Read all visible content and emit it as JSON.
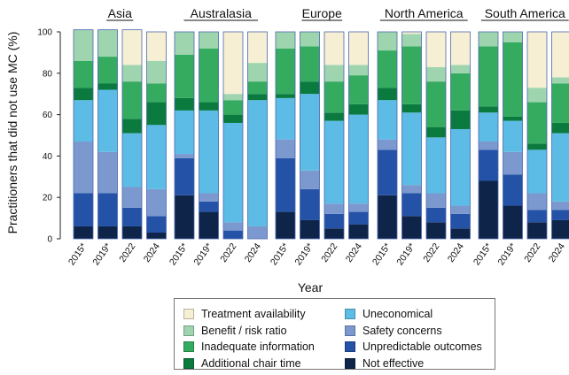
{
  "chart_data": {
    "type": "bar",
    "stacked": true,
    "ylabel": "Practitioners that did not use MC (%)",
    "xlabel": "Year",
    "ylim": [
      0,
      100
    ],
    "yticks": [
      0,
      20,
      40,
      60,
      80,
      100
    ],
    "grid": false,
    "legend_position": "bottom",
    "categories": [
      "2015*",
      "2019*",
      "2022",
      "2024"
    ],
    "stack_order": [
      "Not effective",
      "Unpredictable outcomes",
      "Safety concerns",
      "Uneconomical",
      "Additional chair time",
      "Inadequate information",
      "Benefit / risk ratio",
      "Treatment availability"
    ],
    "colors": {
      "Treatment availability": "#f6efd4",
      "Benefit / risk ratio": "#9fd5ae",
      "Inadequate information": "#35ab60",
      "Additional chair time": "#0b7a3e",
      "Uneconomical": "#5cbce6",
      "Safety concerns": "#7c99cf",
      "Unpredictable outcomes": "#2452a6",
      "Not effective": "#0e2448"
    },
    "panels": [
      {
        "region": "Asia",
        "bars": [
          {
            "Not effective": 6,
            "Unpredictable outcomes": 16,
            "Safety concerns": 25,
            "Uneconomical": 20,
            "Additional chair time": 6,
            "Inadequate information": 13,
            "Benefit / risk ratio": 15,
            "Treatment availability": 0
          },
          {
            "Not effective": 6,
            "Unpredictable outcomes": 16,
            "Safety concerns": 20,
            "Uneconomical": 30,
            "Additional chair time": 3,
            "Inadequate information": 13,
            "Benefit / risk ratio": 13,
            "Treatment availability": 0
          },
          {
            "Not effective": 6,
            "Unpredictable outcomes": 9,
            "Safety concerns": 10,
            "Uneconomical": 26,
            "Additional chair time": 7,
            "Inadequate information": 18,
            "Benefit / risk ratio": 8,
            "Treatment availability": 17
          },
          {
            "Not effective": 3,
            "Unpredictable outcomes": 8,
            "Safety concerns": 13,
            "Uneconomical": 31,
            "Additional chair time": 11,
            "Inadequate information": 9,
            "Benefit / risk ratio": 11,
            "Treatment availability": 14
          }
        ]
      },
      {
        "region": "Australasia",
        "bars": [
          {
            "Not effective": 21,
            "Unpredictable outcomes": 18,
            "Safety concerns": 2,
            "Uneconomical": 21,
            "Additional chair time": 6,
            "Inadequate information": 21,
            "Benefit / risk ratio": 11,
            "Treatment availability": 0
          },
          {
            "Not effective": 13,
            "Unpredictable outcomes": 5,
            "Safety concerns": 4,
            "Uneconomical": 40,
            "Additional chair time": 4,
            "Inadequate information": 26,
            "Benefit / risk ratio": 8,
            "Treatment availability": 0
          },
          {
            "Not effective": 0,
            "Unpredictable outcomes": 4,
            "Safety concerns": 4,
            "Uneconomical": 48,
            "Additional chair time": 4,
            "Inadequate information": 7,
            "Benefit / risk ratio": 3,
            "Treatment availability": 30
          },
          {
            "Not effective": 0,
            "Unpredictable outcomes": 0,
            "Safety concerns": 6,
            "Uneconomical": 61,
            "Additional chair time": 3,
            "Inadequate information": 6,
            "Benefit / risk ratio": 9,
            "Treatment availability": 15
          }
        ]
      },
      {
        "region": "Europe",
        "bars": [
          {
            "Not effective": 13,
            "Unpredictable outcomes": 26,
            "Safety concerns": 9,
            "Uneconomical": 20,
            "Additional chair time": 2,
            "Inadequate information": 22,
            "Benefit / risk ratio": 8,
            "Treatment availability": 0
          },
          {
            "Not effective": 9,
            "Unpredictable outcomes": 15,
            "Safety concerns": 9,
            "Uneconomical": 37,
            "Additional chair time": 6,
            "Inadequate information": 17,
            "Benefit / risk ratio": 7,
            "Treatment availability": 0
          },
          {
            "Not effective": 5,
            "Unpredictable outcomes": 7,
            "Safety concerns": 5,
            "Uneconomical": 40,
            "Additional chair time": 4,
            "Inadequate information": 15,
            "Benefit / risk ratio": 8,
            "Treatment availability": 16
          },
          {
            "Not effective": 7,
            "Unpredictable outcomes": 6,
            "Safety concerns": 4,
            "Uneconomical": 43,
            "Additional chair time": 5,
            "Inadequate information": 14,
            "Benefit / risk ratio": 5,
            "Treatment availability": 16
          }
        ]
      },
      {
        "region": "North America",
        "bars": [
          {
            "Not effective": 21,
            "Unpredictable outcomes": 22,
            "Safety concerns": 5,
            "Uneconomical": 19,
            "Additional chair time": 6,
            "Inadequate information": 18,
            "Benefit / risk ratio": 9,
            "Treatment availability": 0
          },
          {
            "Not effective": 11,
            "Unpredictable outcomes": 11,
            "Safety concerns": 4,
            "Uneconomical": 35,
            "Additional chair time": 4,
            "Inadequate information": 28,
            "Benefit / risk ratio": 6,
            "Treatment availability": 1
          },
          {
            "Not effective": 8,
            "Unpredictable outcomes": 7,
            "Safety concerns": 7,
            "Uneconomical": 27,
            "Additional chair time": 5,
            "Inadequate information": 22,
            "Benefit / risk ratio": 7,
            "Treatment availability": 17
          },
          {
            "Not effective": 5,
            "Unpredictable outcomes": 7,
            "Safety concerns": 4,
            "Uneconomical": 37,
            "Additional chair time": 9,
            "Inadequate information": 18,
            "Benefit / risk ratio": 4,
            "Treatment availability": 16
          }
        ]
      },
      {
        "region": "South America",
        "bars": [
          {
            "Not effective": 28,
            "Unpredictable outcomes": 15,
            "Safety concerns": 4,
            "Uneconomical": 14,
            "Additional chair time": 3,
            "Inadequate information": 29,
            "Benefit / risk ratio": 7,
            "Treatment availability": 0
          },
          {
            "Not effective": 16,
            "Unpredictable outcomes": 15,
            "Safety concerns": 11,
            "Uneconomical": 15,
            "Additional chair time": 2,
            "Inadequate information": 36,
            "Benefit / risk ratio": 5,
            "Treatment availability": 0
          },
          {
            "Not effective": 8,
            "Unpredictable outcomes": 6,
            "Safety concerns": 8,
            "Uneconomical": 21,
            "Additional chair time": 3,
            "Inadequate information": 20,
            "Benefit / risk ratio": 7,
            "Treatment availability": 27
          },
          {
            "Not effective": 9,
            "Unpredictable outcomes": 5,
            "Safety concerns": 4,
            "Uneconomical": 33,
            "Additional chair time": 5,
            "Inadequate information": 19,
            "Benefit / risk ratio": 3,
            "Treatment availability": 22
          }
        ]
      }
    ]
  },
  "legend": {
    "left": [
      {
        "label": "Treatment availability",
        "color": "#f6efd4"
      },
      {
        "label": "Benefit / risk ratio",
        "color": "#9fd5ae"
      },
      {
        "label": "Inadequate information",
        "color": "#35ab60"
      },
      {
        "label": "Additional chair time",
        "color": "#0b7a3e"
      }
    ],
    "right": [
      {
        "label": "Uneconomical",
        "color": "#5cbce6"
      },
      {
        "label": "Safety concerns",
        "color": "#7c99cf"
      },
      {
        "label": "Unpredictable outcomes",
        "color": "#2452a6"
      },
      {
        "label": "Not effective",
        "color": "#0e2448"
      }
    ]
  }
}
